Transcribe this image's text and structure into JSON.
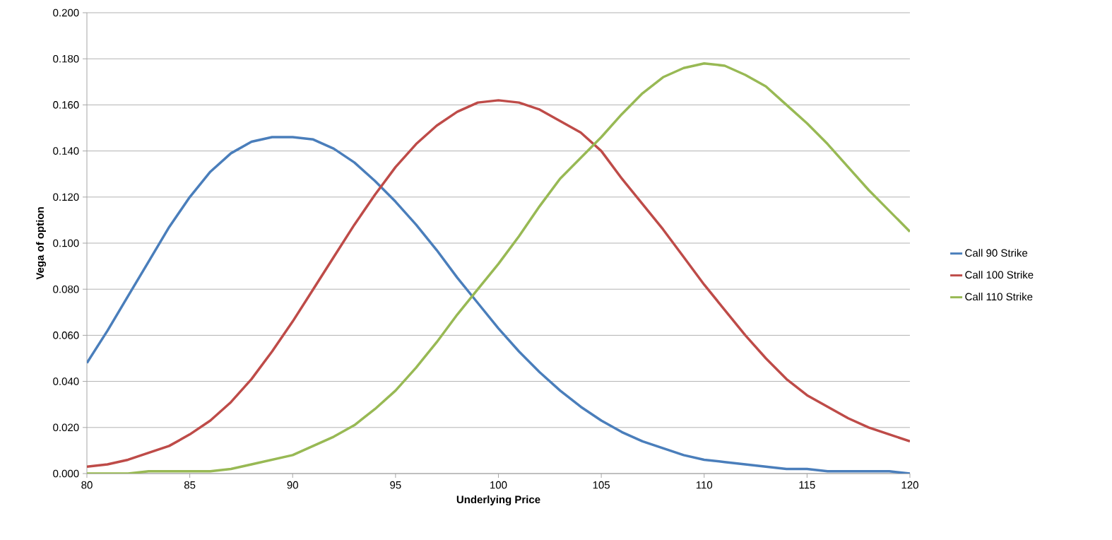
{
  "chart_data": {
    "type": "line",
    "xlabel": "Underlying Price",
    "ylabel": "Vega of option",
    "x": [
      80,
      81,
      82,
      83,
      84,
      85,
      86,
      87,
      88,
      89,
      90,
      91,
      92,
      93,
      94,
      95,
      96,
      97,
      98,
      99,
      100,
      101,
      102,
      103,
      104,
      105,
      106,
      107,
      108,
      109,
      110,
      111,
      112,
      113,
      114,
      115,
      116,
      117,
      118,
      119,
      120
    ],
    "series": [
      {
        "name": "Call 90 Strike",
        "color": "#4a7ebb",
        "values": [
          0.048,
          0.062,
          0.077,
          0.092,
          0.107,
          0.12,
          0.131,
          0.139,
          0.144,
          0.146,
          0.146,
          0.145,
          0.141,
          0.135,
          0.127,
          0.118,
          0.108,
          0.097,
          0.085,
          0.074,
          0.063,
          0.053,
          0.044,
          0.036,
          0.029,
          0.023,
          0.018,
          0.014,
          0.011,
          0.008,
          0.006,
          0.005,
          0.004,
          0.003,
          0.002,
          0.002,
          0.001,
          0.001,
          0.001,
          0.001,
          0.0
        ]
      },
      {
        "name": "Call 100 Strike",
        "color": "#be4b48",
        "values": [
          0.003,
          0.004,
          0.006,
          0.009,
          0.012,
          0.017,
          0.023,
          0.031,
          0.041,
          0.053,
          0.066,
          0.08,
          0.094,
          0.108,
          0.121,
          0.133,
          0.143,
          0.151,
          0.157,
          0.161,
          0.162,
          0.161,
          0.158,
          0.153,
          0.148,
          0.14,
          0.128,
          0.117,
          0.106,
          0.094,
          0.082,
          0.071,
          0.06,
          0.05,
          0.041,
          0.034,
          0.029,
          0.024,
          0.02,
          0.017,
          0.014
        ]
      },
      {
        "name": "Call 110 Strike",
        "color": "#98b954",
        "values": [
          0.0,
          0.0,
          0.0,
          0.001,
          0.001,
          0.001,
          0.001,
          0.002,
          0.004,
          0.006,
          0.008,
          0.012,
          0.016,
          0.021,
          0.028,
          0.036,
          0.046,
          0.057,
          0.069,
          0.08,
          0.091,
          0.103,
          0.116,
          0.128,
          0.137,
          0.146,
          0.156,
          0.165,
          0.172,
          0.176,
          0.178,
          0.177,
          0.173,
          0.168,
          0.16,
          0.152,
          0.143,
          0.133,
          0.123,
          0.114,
          0.105
        ]
      }
    ],
    "xlim": [
      80,
      120
    ],
    "xticks": [
      80,
      85,
      90,
      95,
      100,
      105,
      110,
      115,
      120
    ],
    "ylim": [
      0,
      0.2
    ],
    "yticks": [
      {
        "value": 0,
        "label": "0.000"
      },
      {
        "value": 0.02,
        "label": "0.020"
      },
      {
        "value": 0.04,
        "label": "0.040"
      },
      {
        "value": 0.06,
        "label": "0.060"
      },
      {
        "value": 0.08,
        "label": "0.080"
      },
      {
        "value": 0.1,
        "label": "0.100"
      },
      {
        "value": 0.12,
        "label": "0.120"
      },
      {
        "value": 0.14,
        "label": "0.140"
      },
      {
        "value": 0.16,
        "label": "0.160"
      },
      {
        "value": 0.18,
        "label": "0.180"
      },
      {
        "value": 0.2,
        "label": "0.200"
      }
    ],
    "grid": "y",
    "legend": "right"
  }
}
